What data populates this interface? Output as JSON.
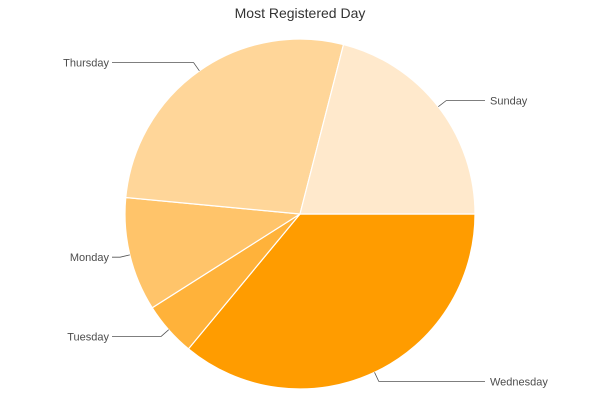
{
  "chart_data": {
    "type": "pie",
    "title": "Most Registered Day",
    "start_angle_deg": 0,
    "direction": "clockwise",
    "slices": [
      {
        "label": "Wednesday",
        "value": 36,
        "color": "#ff9c00"
      },
      {
        "label": "Tuesday",
        "value": 5,
        "color": "#ffb23a"
      },
      {
        "label": "Monday",
        "value": 10.5,
        "color": "#ffc46a"
      },
      {
        "label": "Thursday",
        "value": 27.5,
        "color": "#ffd699"
      },
      {
        "label": "Sunday",
        "value": 21,
        "color": "#ffe9cc"
      }
    ]
  }
}
